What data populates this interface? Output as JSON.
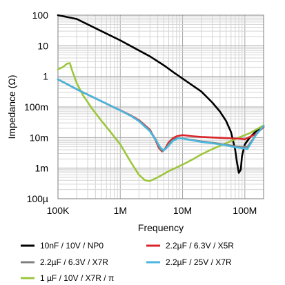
{
  "chart_data": {
    "type": "line",
    "title": "",
    "xlabel": "Frequency",
    "ylabel": "Impedance (Ω)",
    "x_scale": "log",
    "y_scale": "log",
    "xlim": [
      100000,
      200000000
    ],
    "ylim": [
      0.0001,
      100
    ],
    "grid": true,
    "legend_position": "bottom",
    "x_ticks": [
      {
        "value": 100000,
        "label": "100K"
      },
      {
        "value": 1000000,
        "label": "1M"
      },
      {
        "value": 10000000,
        "label": "10M"
      },
      {
        "value": 100000000,
        "label": "100M"
      }
    ],
    "y_ticks": [
      {
        "value": 100,
        "label": "100"
      },
      {
        "value": 10,
        "label": "10"
      },
      {
        "value": 1,
        "label": "1"
      },
      {
        "value": 0.1,
        "label": "100m"
      },
      {
        "value": 0.01,
        "label": "10m"
      },
      {
        "value": 0.001,
        "label": "1m"
      },
      {
        "value": 0.0001,
        "label": "100µ"
      }
    ],
    "series": [
      {
        "name": "10nF / 10V / NP0",
        "color": "#000000",
        "points": [
          [
            100000,
            100
          ],
          [
            200000,
            75
          ],
          [
            500000,
            30
          ],
          [
            1000000,
            15
          ],
          [
            2000000,
            7
          ],
          [
            3000000,
            4.5
          ],
          [
            5000000,
            2.3
          ],
          [
            7000000,
            1.4
          ],
          [
            10000000,
            0.85
          ],
          [
            20000000,
            0.32
          ],
          [
            30000000,
            0.14
          ],
          [
            40000000,
            0.07
          ],
          [
            50000000,
            0.035
          ],
          [
            60000000,
            0.015
          ],
          [
            70000000,
            0.004
          ],
          [
            75000000,
            0.0015
          ],
          [
            80000000,
            0.0007
          ],
          [
            86000000,
            0.0009
          ],
          [
            90000000,
            0.0025
          ],
          [
            100000000,
            0.006
          ],
          [
            120000000,
            0.01
          ],
          [
            150000000,
            0.016
          ],
          [
            200000000,
            0.024
          ]
        ]
      },
      {
        "name": "2.2µF / 6.3V / X5R",
        "color": "#d9252a",
        "points": [
          [
            100000,
            0.8
          ],
          [
            200000,
            0.38
          ],
          [
            400000,
            0.19
          ],
          [
            700000,
            0.11
          ],
          [
            1000000,
            0.078
          ],
          [
            1500000,
            0.052
          ],
          [
            2000000,
            0.037
          ],
          [
            3000000,
            0.018
          ],
          [
            3700000,
            0.008
          ],
          [
            4200000,
            0.0045
          ],
          [
            4700000,
            0.0035
          ],
          [
            5200000,
            0.0042
          ],
          [
            6000000,
            0.007
          ],
          [
            7000000,
            0.0095
          ],
          [
            8000000,
            0.011
          ],
          [
            10000000,
            0.012
          ],
          [
            15000000,
            0.011
          ],
          [
            20000000,
            0.0105
          ],
          [
            40000000,
            0.0098
          ],
          [
            60000000,
            0.0094
          ],
          [
            80000000,
            0.0092
          ],
          [
            100000000,
            0.0088
          ],
          [
            150000000,
            0.013
          ],
          [
            200000000,
            0.022
          ]
        ]
      },
      {
        "name": "2.2µF / 6.3V / X7R",
        "color": "#808080",
        "points": [
          [
            100000,
            0.8
          ],
          [
            200000,
            0.38
          ],
          [
            400000,
            0.19
          ],
          [
            700000,
            0.11
          ],
          [
            1000000,
            0.077
          ],
          [
            1500000,
            0.051
          ],
          [
            2000000,
            0.036
          ],
          [
            3000000,
            0.017
          ],
          [
            3800000,
            0.008
          ],
          [
            4300000,
            0.0045
          ],
          [
            4800000,
            0.0036
          ],
          [
            5400000,
            0.0045
          ],
          [
            6500000,
            0.0075
          ],
          [
            8000000,
            0.0095
          ],
          [
            10000000,
            0.0093
          ],
          [
            15000000,
            0.0082
          ],
          [
            20000000,
            0.0075
          ],
          [
            30000000,
            0.0068
          ],
          [
            50000000,
            0.0058
          ],
          [
            70000000,
            0.0052
          ],
          [
            90000000,
            0.005
          ],
          [
            110000000,
            0.005
          ],
          [
            150000000,
            0.012
          ],
          [
            200000000,
            0.024
          ]
        ]
      },
      {
        "name": "2.2µF / 25V / X7R",
        "color": "#4ab6de",
        "points": [
          [
            100000,
            0.8
          ],
          [
            200000,
            0.38
          ],
          [
            400000,
            0.19
          ],
          [
            700000,
            0.11
          ],
          [
            1000000,
            0.077
          ],
          [
            1500000,
            0.05
          ],
          [
            2000000,
            0.034
          ],
          [
            3000000,
            0.016
          ],
          [
            4000000,
            0.0065
          ],
          [
            4500000,
            0.0045
          ],
          [
            5000000,
            0.0038
          ],
          [
            5600000,
            0.0047
          ],
          [
            7000000,
            0.0078
          ],
          [
            8500000,
            0.0095
          ],
          [
            10000000,
            0.0092
          ],
          [
            15000000,
            0.008
          ],
          [
            20000000,
            0.0072
          ],
          [
            30000000,
            0.0065
          ],
          [
            50000000,
            0.0056
          ],
          [
            70000000,
            0.0048
          ],
          [
            90000000,
            0.0045
          ],
          [
            110000000,
            0.0042
          ],
          [
            150000000,
            0.012
          ],
          [
            200000000,
            0.024
          ]
        ]
      },
      {
        "name": "1 µF / 10V / X7R / π",
        "color": "#9dc63c",
        "points": [
          [
            100000,
            1.7
          ],
          [
            120000,
            2.0
          ],
          [
            140000,
            2.6
          ],
          [
            155000,
            2.7
          ],
          [
            170000,
            1.5
          ],
          [
            200000,
            0.6
          ],
          [
            250000,
            0.25
          ],
          [
            350000,
            0.09
          ],
          [
            500000,
            0.035
          ],
          [
            700000,
            0.015
          ],
          [
            1000000,
            0.006
          ],
          [
            1500000,
            0.0015
          ],
          [
            2000000,
            0.0006
          ],
          [
            2500000,
            0.0004
          ],
          [
            3000000,
            0.00038
          ],
          [
            4000000,
            0.0005
          ],
          [
            6000000,
            0.0008
          ],
          [
            10000000,
            0.0013
          ],
          [
            15000000,
            0.002
          ],
          [
            20000000,
            0.0028
          ],
          [
            30000000,
            0.0042
          ],
          [
            50000000,
            0.0065
          ],
          [
            80000000,
            0.01
          ],
          [
            120000000,
            0.014
          ],
          [
            200000000,
            0.025
          ]
        ]
      }
    ]
  }
}
